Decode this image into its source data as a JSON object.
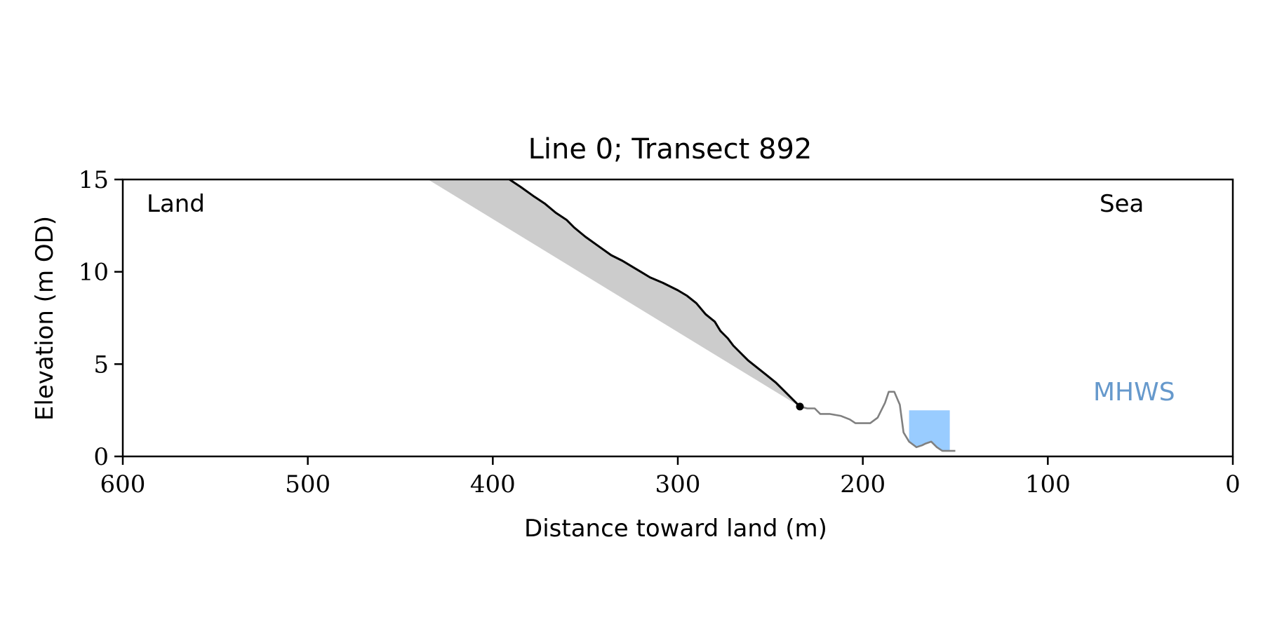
{
  "chart_data": {
    "type": "line",
    "title": "Line 0; Transect 892",
    "xlabel": "Distance toward land (m)",
    "ylabel": "Elevation (m OD)",
    "xlim": [
      600,
      0
    ],
    "ylim": [
      0,
      15
    ],
    "x_reversed": true,
    "grid": false,
    "xticks": [
      600,
      500,
      400,
      300,
      200,
      100,
      0
    ],
    "yticks": [
      0,
      5,
      10,
      15
    ],
    "annotations": {
      "land": "Land",
      "sea": "Sea",
      "mhws": "MHWS"
    },
    "colors": {
      "profile": "#000000",
      "profile_toe": "#808080",
      "uncertainty": "#cccccc",
      "water": "#99ccff",
      "mhws_label": "#6699cc"
    },
    "series": [
      {
        "role": "upper_profile",
        "points": [
          [
            391,
            15.0
          ],
          [
            385,
            14.6
          ],
          [
            378,
            14.1
          ],
          [
            372,
            13.7
          ],
          [
            366,
            13.2
          ],
          [
            360,
            12.8
          ],
          [
            356,
            12.4
          ],
          [
            350,
            11.9
          ],
          [
            343,
            11.4
          ],
          [
            336,
            10.9
          ],
          [
            330,
            10.6
          ],
          [
            325,
            10.3
          ],
          [
            320,
            10.0
          ],
          [
            315,
            9.7
          ],
          [
            308,
            9.4
          ],
          [
            300,
            9.0
          ],
          [
            295,
            8.7
          ],
          [
            290,
            8.3
          ],
          [
            285,
            7.7
          ],
          [
            280,
            7.3
          ],
          [
            277,
            6.8
          ],
          [
            273,
            6.4
          ],
          [
            270,
            6.0
          ],
          [
            266,
            5.6
          ],
          [
            262,
            5.2
          ],
          [
            257,
            4.8
          ],
          [
            252,
            4.4
          ],
          [
            247,
            4.0
          ],
          [
            243,
            3.6
          ],
          [
            239,
            3.2
          ],
          [
            236,
            2.9
          ],
          [
            234,
            2.7
          ]
        ]
      },
      {
        "role": "toe_profile",
        "points": [
          [
            234,
            2.7
          ],
          [
            230,
            2.6
          ],
          [
            226,
            2.6
          ],
          [
            223,
            2.3
          ],
          [
            218,
            2.3
          ],
          [
            212,
            2.2
          ],
          [
            207,
            2.0
          ],
          [
            204,
            1.8
          ],
          [
            200,
            1.8
          ],
          [
            196,
            1.8
          ],
          [
            192,
            2.1
          ],
          [
            188,
            2.9
          ],
          [
            186,
            3.5
          ],
          [
            183,
            3.5
          ],
          [
            180,
            2.8
          ],
          [
            178,
            1.3
          ],
          [
            175,
            0.8
          ],
          [
            171,
            0.5
          ],
          [
            168,
            0.6
          ],
          [
            166,
            0.7
          ],
          [
            163,
            0.8
          ],
          [
            160,
            0.5
          ],
          [
            157,
            0.3
          ],
          [
            153,
            0.3
          ],
          [
            150,
            0.3
          ]
        ]
      }
    ],
    "uncertainty_band": {
      "upper": [
        [
          391,
          15.0
        ],
        [
          378,
          14.1
        ],
        [
          366,
          13.2
        ],
        [
          356,
          12.4
        ],
        [
          343,
          11.4
        ],
        [
          330,
          10.6
        ],
        [
          320,
          10.0
        ],
        [
          308,
          9.4
        ],
        [
          300,
          9.0
        ],
        [
          290,
          8.3
        ],
        [
          280,
          7.3
        ],
        [
          273,
          6.4
        ],
        [
          266,
          5.6
        ],
        [
          257,
          4.8
        ],
        [
          247,
          4.0
        ],
        [
          239,
          3.2
        ],
        [
          234,
          2.7
        ]
      ],
      "lower_start": [
        435,
        15.0
      ],
      "lower_end": [
        234,
        2.7
      ]
    },
    "toe_point": [
      234,
      2.7
    ],
    "water_box": {
      "x_from": 175,
      "x_to": 153,
      "top": 2.5
    }
  }
}
